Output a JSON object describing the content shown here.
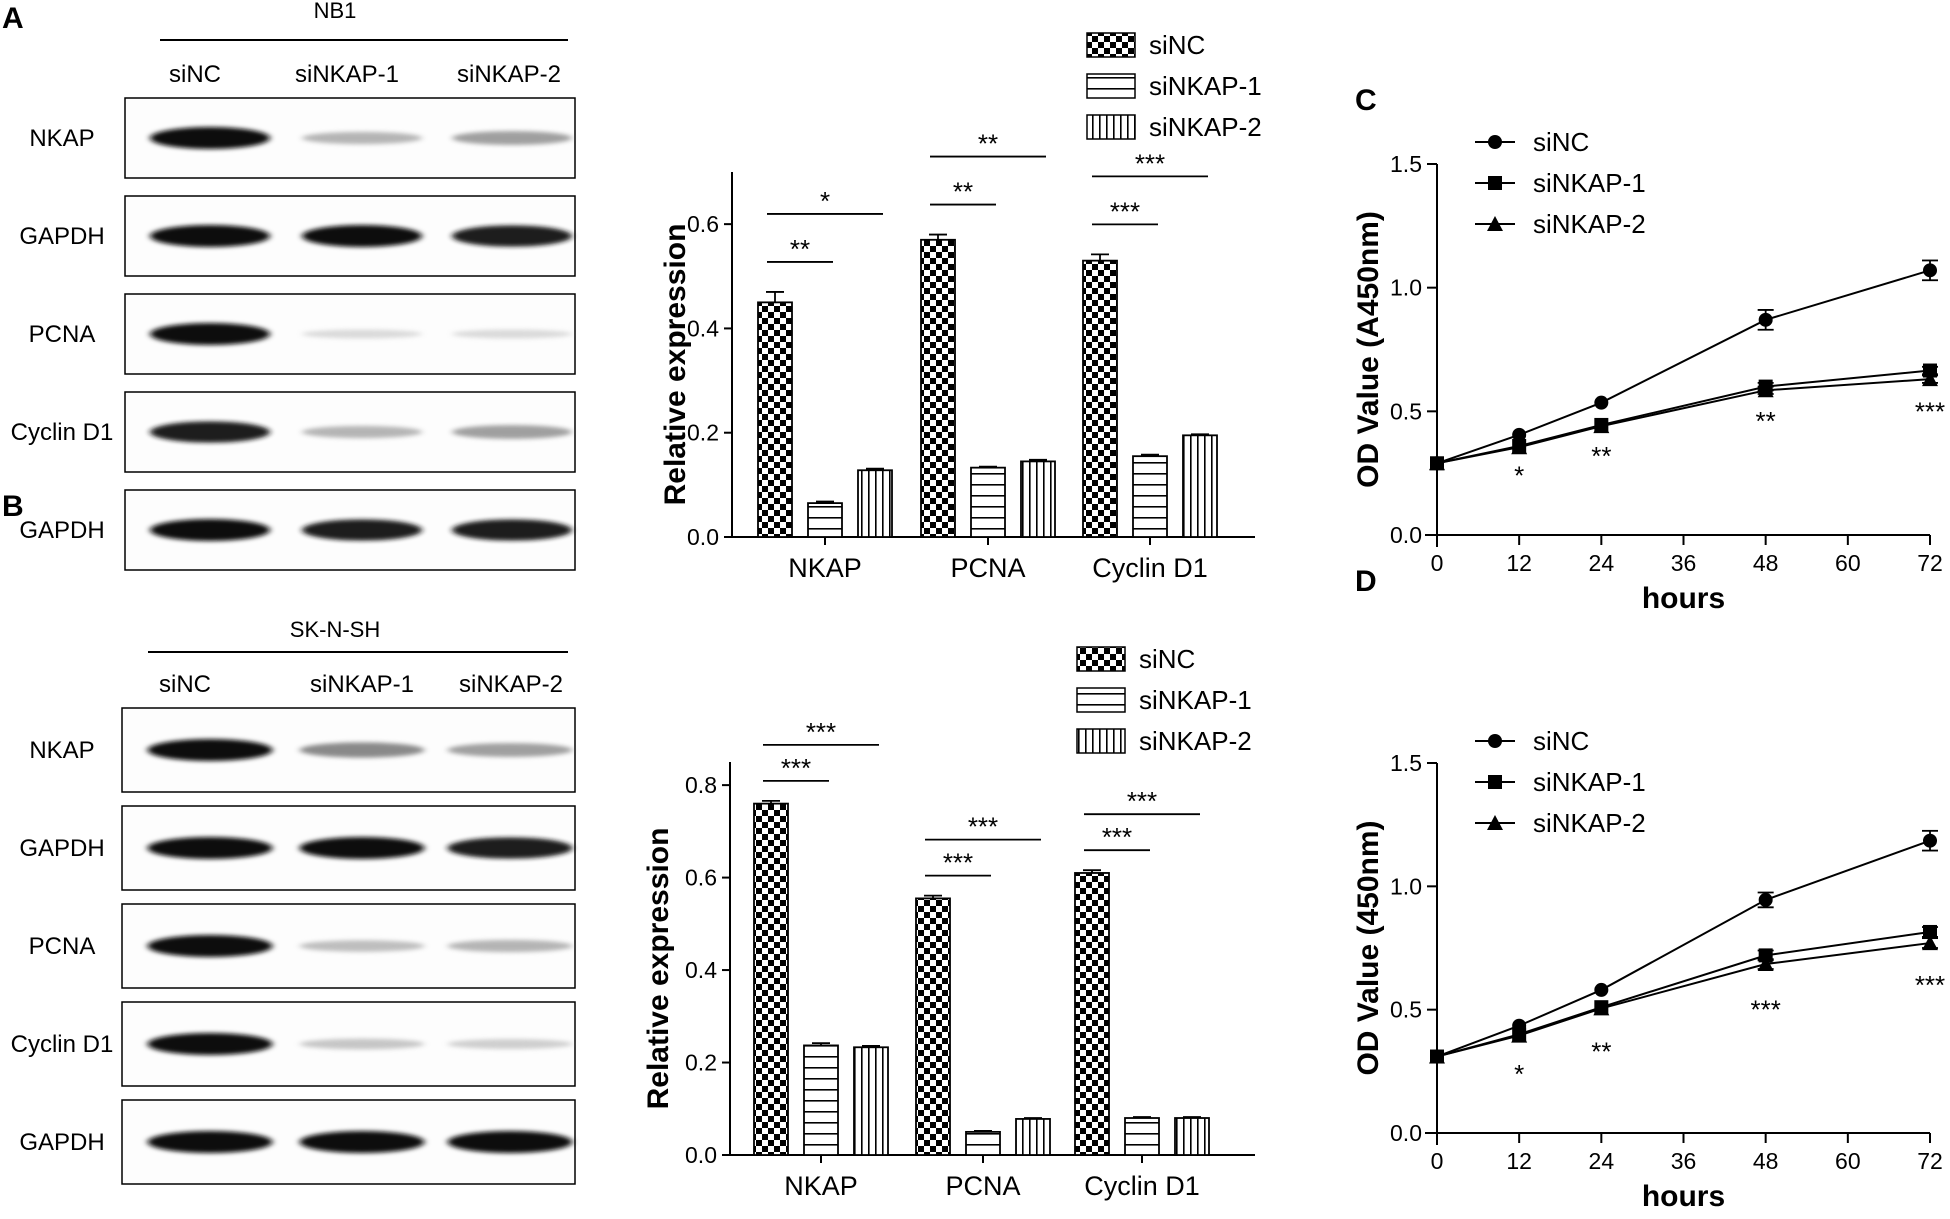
{
  "panels": {
    "A": {
      "letter": "A",
      "blot": {
        "cell_line": "NB1",
        "lanes": [
          "siNC",
          "siNKAP-1",
          "siNKAP-2"
        ],
        "rows": [
          {
            "label": "NKAP",
            "intensity": [
              1.0,
              0.35,
              0.45
            ]
          },
          {
            "label": "GAPDH",
            "intensity": [
              1.0,
              1.0,
              0.95
            ]
          },
          {
            "label": "PCNA",
            "intensity": [
              1.0,
              0.12,
              0.12
            ]
          },
          {
            "label": "Cyclin D1",
            "intensity": [
              0.95,
              0.35,
              0.45
            ]
          },
          {
            "label": "GAPDH",
            "intensity": [
              1.0,
              0.95,
              0.95
            ]
          }
        ]
      }
    },
    "B": {
      "letter": "B",
      "blot": {
        "cell_line": "SK-N-SH",
        "lanes": [
          "siNC",
          "siNKAP-1",
          "siNKAP-2"
        ],
        "rows": [
          {
            "label": "NKAP",
            "intensity": [
              1.0,
              0.55,
              0.45
            ]
          },
          {
            "label": "GAPDH",
            "intensity": [
              1.0,
              1.0,
              0.95
            ]
          },
          {
            "label": "PCNA",
            "intensity": [
              1.0,
              0.3,
              0.35
            ]
          },
          {
            "label": "Cyclin D1",
            "intensity": [
              1.0,
              0.25,
              0.2
            ]
          },
          {
            "label": "GAPDH",
            "intensity": [
              1.0,
              1.0,
              1.0
            ]
          }
        ]
      }
    },
    "C": {
      "letter": "C"
    },
    "D": {
      "letter": "D"
    }
  },
  "chart_data": [
    {
      "id": "A-bar",
      "type": "bar",
      "ylabel": "Relative expression",
      "xlabel": "",
      "ylim": [
        0,
        0.7
      ],
      "yticks": [
        0.0,
        0.2,
        0.4,
        0.6
      ],
      "ytick_labels": [
        "0.0",
        "0.2",
        "0.4",
        "0.6"
      ],
      "categories": [
        "NKAP",
        "PCNA",
        "Cyclin D1"
      ],
      "legend_position": "top-right",
      "series": [
        {
          "name": "siNC",
          "pattern": "checker",
          "values": [
            0.45,
            0.57,
            0.53
          ],
          "errors": [
            0.02,
            0.01,
            0.012
          ]
        },
        {
          "name": "siNKAP-1",
          "pattern": "hstripe",
          "values": [
            0.065,
            0.133,
            0.155
          ],
          "errors": [
            0.003,
            0.002,
            0.003
          ]
        },
        {
          "name": "siNKAP-2",
          "pattern": "vstripe",
          "values": [
            0.128,
            0.145,
            0.195
          ],
          "errors": [
            0.003,
            0.003,
            0.002
          ]
        }
      ],
      "significance": [
        {
          "category": 0,
          "from": 0,
          "to": 1,
          "level": 1,
          "label": "**"
        },
        {
          "category": 0,
          "from": 0,
          "to": 2,
          "level": 2,
          "label": "*"
        },
        {
          "category": 1,
          "from": 0,
          "to": 1,
          "level": 1,
          "label": "**"
        },
        {
          "category": 1,
          "from": 0,
          "to": 2,
          "level": 2,
          "label": "**"
        },
        {
          "category": 2,
          "from": 0,
          "to": 1,
          "level": 1,
          "label": "***"
        },
        {
          "category": 2,
          "from": 0,
          "to": 2,
          "level": 2,
          "label": "***"
        }
      ]
    },
    {
      "id": "B-bar",
      "type": "bar",
      "ylabel": "Relative expression",
      "xlabel": "",
      "ylim": [
        0,
        0.85
      ],
      "yticks": [
        0.0,
        0.2,
        0.4,
        0.6,
        0.8
      ],
      "ytick_labels": [
        "0.0",
        "0.2",
        "0.4",
        "0.6",
        "0.8"
      ],
      "categories": [
        "NKAP",
        "PCNA",
        "Cyclin D1"
      ],
      "legend_position": "top-right",
      "series": [
        {
          "name": "siNC",
          "pattern": "checker",
          "values": [
            0.76,
            0.555,
            0.61
          ],
          "errors": [
            0.006,
            0.006,
            0.006
          ]
        },
        {
          "name": "siNKAP-1",
          "pattern": "hstripe",
          "values": [
            0.237,
            0.05,
            0.08
          ],
          "errors": [
            0.005,
            0.002,
            0.002
          ]
        },
        {
          "name": "siNKAP-2",
          "pattern": "vstripe",
          "values": [
            0.233,
            0.078,
            0.08
          ],
          "errors": [
            0.003,
            0.002,
            0.002
          ]
        }
      ],
      "significance": [
        {
          "category": 0,
          "from": 0,
          "to": 1,
          "level": 1,
          "label": "***"
        },
        {
          "category": 0,
          "from": 0,
          "to": 2,
          "level": 2,
          "label": "***"
        },
        {
          "category": 1,
          "from": 0,
          "to": 1,
          "level": 1,
          "label": "***"
        },
        {
          "category": 1,
          "from": 0,
          "to": 2,
          "level": 2,
          "label": "***"
        },
        {
          "category": 2,
          "from": 0,
          "to": 1,
          "level": 1,
          "label": "***"
        },
        {
          "category": 2,
          "from": 0,
          "to": 2,
          "level": 2,
          "label": "***"
        }
      ]
    },
    {
      "id": "C-line",
      "type": "line",
      "ylabel": "OD Value (A450nm)",
      "xlabel": "hours",
      "xlim": [
        0,
        72
      ],
      "ylim": [
        0,
        1.5
      ],
      "xticks": [
        0,
        12,
        24,
        36,
        48,
        60,
        72
      ],
      "xtick_labels": [
        "0",
        "12",
        "24",
        "36",
        "48",
        "60",
        "72"
      ],
      "yticks": [
        0.0,
        0.5,
        1.0,
        1.5
      ],
      "ytick_labels": [
        "0.0",
        "0.5",
        "1.0",
        "1.5"
      ],
      "legend_position": "top-left",
      "series": [
        {
          "name": "siNC",
          "marker": "circle",
          "x": [
            0,
            12,
            24,
            48,
            72
          ],
          "y": [
            0.29,
            0.405,
            0.535,
            0.87,
            1.07
          ],
          "errors": [
            0.01,
            0.01,
            0.01,
            0.04,
            0.04
          ]
        },
        {
          "name": "siNKAP-1",
          "marker": "square",
          "x": [
            0,
            12,
            24,
            48,
            72
          ],
          "y": [
            0.29,
            0.36,
            0.445,
            0.6,
            0.665
          ],
          "errors": [
            0.01,
            0.01,
            0.01,
            0.015,
            0.015
          ]
        },
        {
          "name": "siNKAP-2",
          "marker": "triangle",
          "x": [
            0,
            12,
            24,
            48,
            72
          ],
          "y": [
            0.29,
            0.355,
            0.44,
            0.585,
            0.63
          ],
          "errors": [
            0.01,
            0.01,
            0.01,
            0.015,
            0.015
          ]
        }
      ],
      "annotations": [
        {
          "x": 12,
          "y": 0.24,
          "text": "*"
        },
        {
          "x": 24,
          "y": 0.32,
          "text": "**"
        },
        {
          "x": 48,
          "y": 0.46,
          "text": "**"
        },
        {
          "x": 72,
          "y": 0.5,
          "text": "***"
        }
      ]
    },
    {
      "id": "D-line",
      "type": "line",
      "ylabel": "OD Value (450nm)",
      "xlabel": "hours",
      "xlim": [
        0,
        72
      ],
      "ylim": [
        0,
        1.5
      ],
      "xticks": [
        0,
        12,
        24,
        36,
        48,
        60,
        72
      ],
      "xtick_labels": [
        "0",
        "12",
        "24",
        "36",
        "48",
        "60",
        "72"
      ],
      "yticks": [
        0.0,
        0.5,
        1.0,
        1.5
      ],
      "ytick_labels": [
        "0.0",
        "0.5",
        "1.0",
        "1.5"
      ],
      "legend_position": "top-left",
      "series": [
        {
          "name": "siNC",
          "marker": "circle",
          "x": [
            0,
            12,
            24,
            48,
            72
          ],
          "y": [
            0.31,
            0.435,
            0.58,
            0.945,
            1.185
          ],
          "errors": [
            0.01,
            0.01,
            0.01,
            0.03,
            0.04
          ]
        },
        {
          "name": "siNKAP-1",
          "marker": "square",
          "x": [
            0,
            12,
            24,
            48,
            72
          ],
          "y": [
            0.31,
            0.4,
            0.51,
            0.72,
            0.815
          ],
          "errors": [
            0.01,
            0.01,
            0.01,
            0.02,
            0.02
          ]
        },
        {
          "name": "siNKAP-2",
          "marker": "triangle",
          "x": [
            0,
            12,
            24,
            48,
            72
          ],
          "y": [
            0.31,
            0.395,
            0.505,
            0.685,
            0.77
          ],
          "errors": [
            0.01,
            0.01,
            0.01,
            0.02,
            0.02
          ]
        }
      ],
      "annotations": [
        {
          "x": 12,
          "y": 0.24,
          "text": "*"
        },
        {
          "x": 24,
          "y": 0.33,
          "text": "**"
        },
        {
          "x": 48,
          "y": 0.5,
          "text": "***"
        },
        {
          "x": 72,
          "y": 0.6,
          "text": "***"
        }
      ]
    }
  ]
}
